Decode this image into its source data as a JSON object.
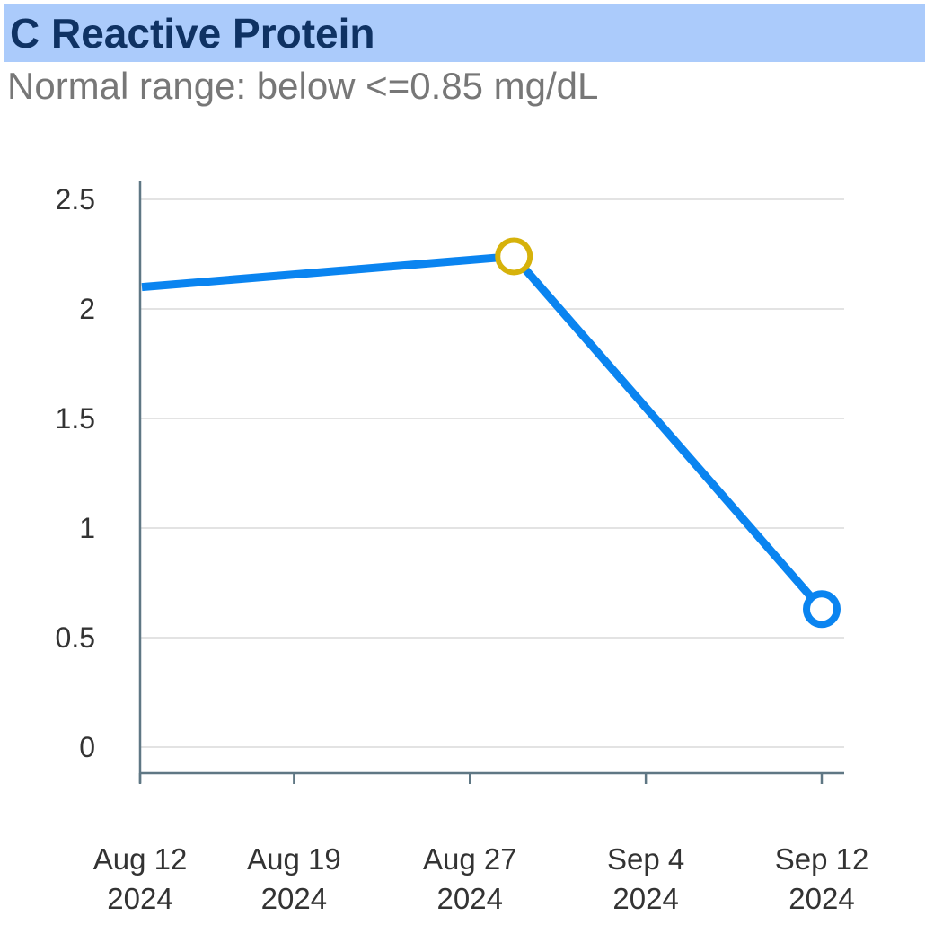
{
  "header": {
    "title": "C Reactive Protein",
    "subtitle": "Normal range: below <=0.85 mg/dL"
  },
  "colors": {
    "title_bar": "#abcbfb",
    "title_text": "#0f3263",
    "subtitle_text": "#777777",
    "line": "#0a84f0",
    "highlight_marker": "#d6b20b",
    "axis": "#5f7784",
    "grid": "#e3e3e3"
  },
  "chart_data": {
    "type": "line",
    "title": "C Reactive Protein",
    "subtitle": "Normal range: below <=0.85 mg/dL",
    "xlabel": "",
    "ylabel": "",
    "ylim": [
      0,
      2.5
    ],
    "yticks": [
      "0",
      "0.5",
      "1",
      "1.5",
      "2",
      "2.5"
    ],
    "xticks": [
      {
        "date": "2024-08-12",
        "line1": "Aug 12",
        "line2": "2024"
      },
      {
        "date": "2024-08-19",
        "line1": "Aug 19",
        "line2": "2024"
      },
      {
        "date": "2024-08-27",
        "line1": "Aug 27",
        "line2": "2024"
      },
      {
        "date": "2024-09-04",
        "line1": "Sep 4",
        "line2": "2024"
      },
      {
        "date": "2024-09-12",
        "line1": "Sep 12",
        "line2": "2024"
      }
    ],
    "xlim": [
      "2024-08-12",
      "2024-09-12"
    ],
    "grid": true,
    "legend": "none",
    "series": [
      {
        "points": [
          {
            "x": "2024-08-12",
            "y": 2.1,
            "marker": false
          },
          {
            "x": "2024-08-29",
            "y": 2.24,
            "marker": true,
            "marker_color": "#d6b20b"
          },
          {
            "x": "2024-09-12",
            "y": 0.63,
            "marker": true,
            "marker_color": "#0a84f0"
          }
        ]
      }
    ]
  }
}
